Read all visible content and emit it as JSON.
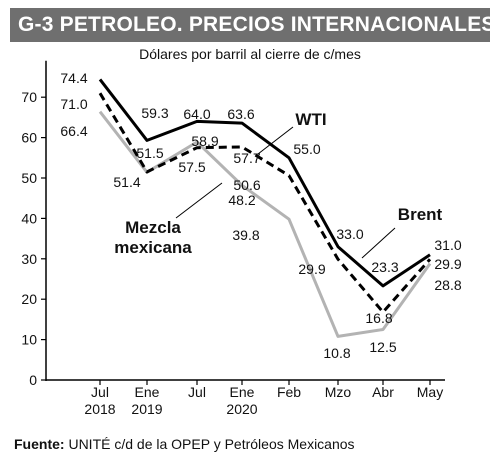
{
  "header": {
    "title": "G-3 PETROLEO. PRECIOS INTERNACIONALES",
    "subtitle": "Dólares por barril al cierre de c/mes"
  },
  "footer": {
    "source_label": "Fuente:",
    "source_text": "UNITÉ c/d de la OPEP y Petróleos Mexicanos"
  },
  "chart_data": {
    "type": "line",
    "categories": [
      "Jul\n2018",
      "Ene\n2019",
      "Jul",
      "Ene\n2020",
      "Feb",
      "Mzo",
      "Abr",
      "May"
    ],
    "ylim": [
      0,
      80
    ],
    "yticks": [
      0,
      10,
      20,
      30,
      40,
      50,
      60,
      70
    ],
    "grid": false,
    "series": [
      {
        "name": "WTI",
        "style": "solid",
        "color": "#000000",
        "values": [
          74.4,
          59.3,
          64.0,
          63.6,
          55.0,
          33.0,
          23.3,
          31.0
        ]
      },
      {
        "name": "Brent",
        "style": "dashed",
        "color": "#000000",
        "values": [
          71.0,
          51.5,
          57.5,
          57.7,
          50.6,
          29.9,
          16.8,
          29.9
        ]
      },
      {
        "name": "Mezcla mexicana",
        "style": "solid",
        "color": "#b3b3b3",
        "values": [
          66.4,
          51.4,
          58.9,
          48.2,
          39.8,
          10.8,
          12.5,
          28.8
        ]
      }
    ],
    "data_labels": [
      {
        "series": 0,
        "index": 0,
        "text": "74.4"
      },
      {
        "series": 1,
        "index": 0,
        "text": "71.0"
      },
      {
        "series": 2,
        "index": 0,
        "text": "66.4"
      },
      {
        "series": 0,
        "index": 1,
        "text": "59.3"
      },
      {
        "series": 1,
        "index": 1,
        "text": "51.5"
      },
      {
        "series": 2,
        "index": 1,
        "text": "51.4"
      },
      {
        "series": 0,
        "index": 2,
        "text": "64.0"
      },
      {
        "series": 2,
        "index": 2,
        "text": "58.9"
      },
      {
        "series": 1,
        "index": 2,
        "text": "57.5"
      },
      {
        "series": 0,
        "index": 3,
        "text": "63.6"
      },
      {
        "series": 1,
        "index": 3,
        "text": "57.7"
      },
      {
        "series": 2,
        "index": 3,
        "text": "48.2"
      },
      {
        "series": 0,
        "index": 4,
        "text": "55.0"
      },
      {
        "series": 1,
        "index": 4,
        "text": "50.6"
      },
      {
        "series": 2,
        "index": 4,
        "text": "39.8"
      },
      {
        "series": 0,
        "index": 5,
        "text": "33.0"
      },
      {
        "series": 1,
        "index": 5,
        "text": "29.9"
      },
      {
        "series": 2,
        "index": 5,
        "text": "10.8"
      },
      {
        "series": 0,
        "index": 6,
        "text": "23.3"
      },
      {
        "series": 1,
        "index": 6,
        "text": "16.8"
      },
      {
        "series": 2,
        "index": 6,
        "text": "12.5"
      },
      {
        "series": 0,
        "index": 7,
        "text": "31.0"
      },
      {
        "series": 1,
        "index": 7,
        "text": "29.9"
      },
      {
        "series": 2,
        "index": 7,
        "text": "28.8"
      }
    ],
    "series_labels": [
      {
        "series": 0,
        "text": "WTI"
      },
      {
        "series": 1,
        "text": "Brent"
      },
      {
        "series": 2,
        "text": "Mezcla\nmexicana"
      }
    ]
  }
}
